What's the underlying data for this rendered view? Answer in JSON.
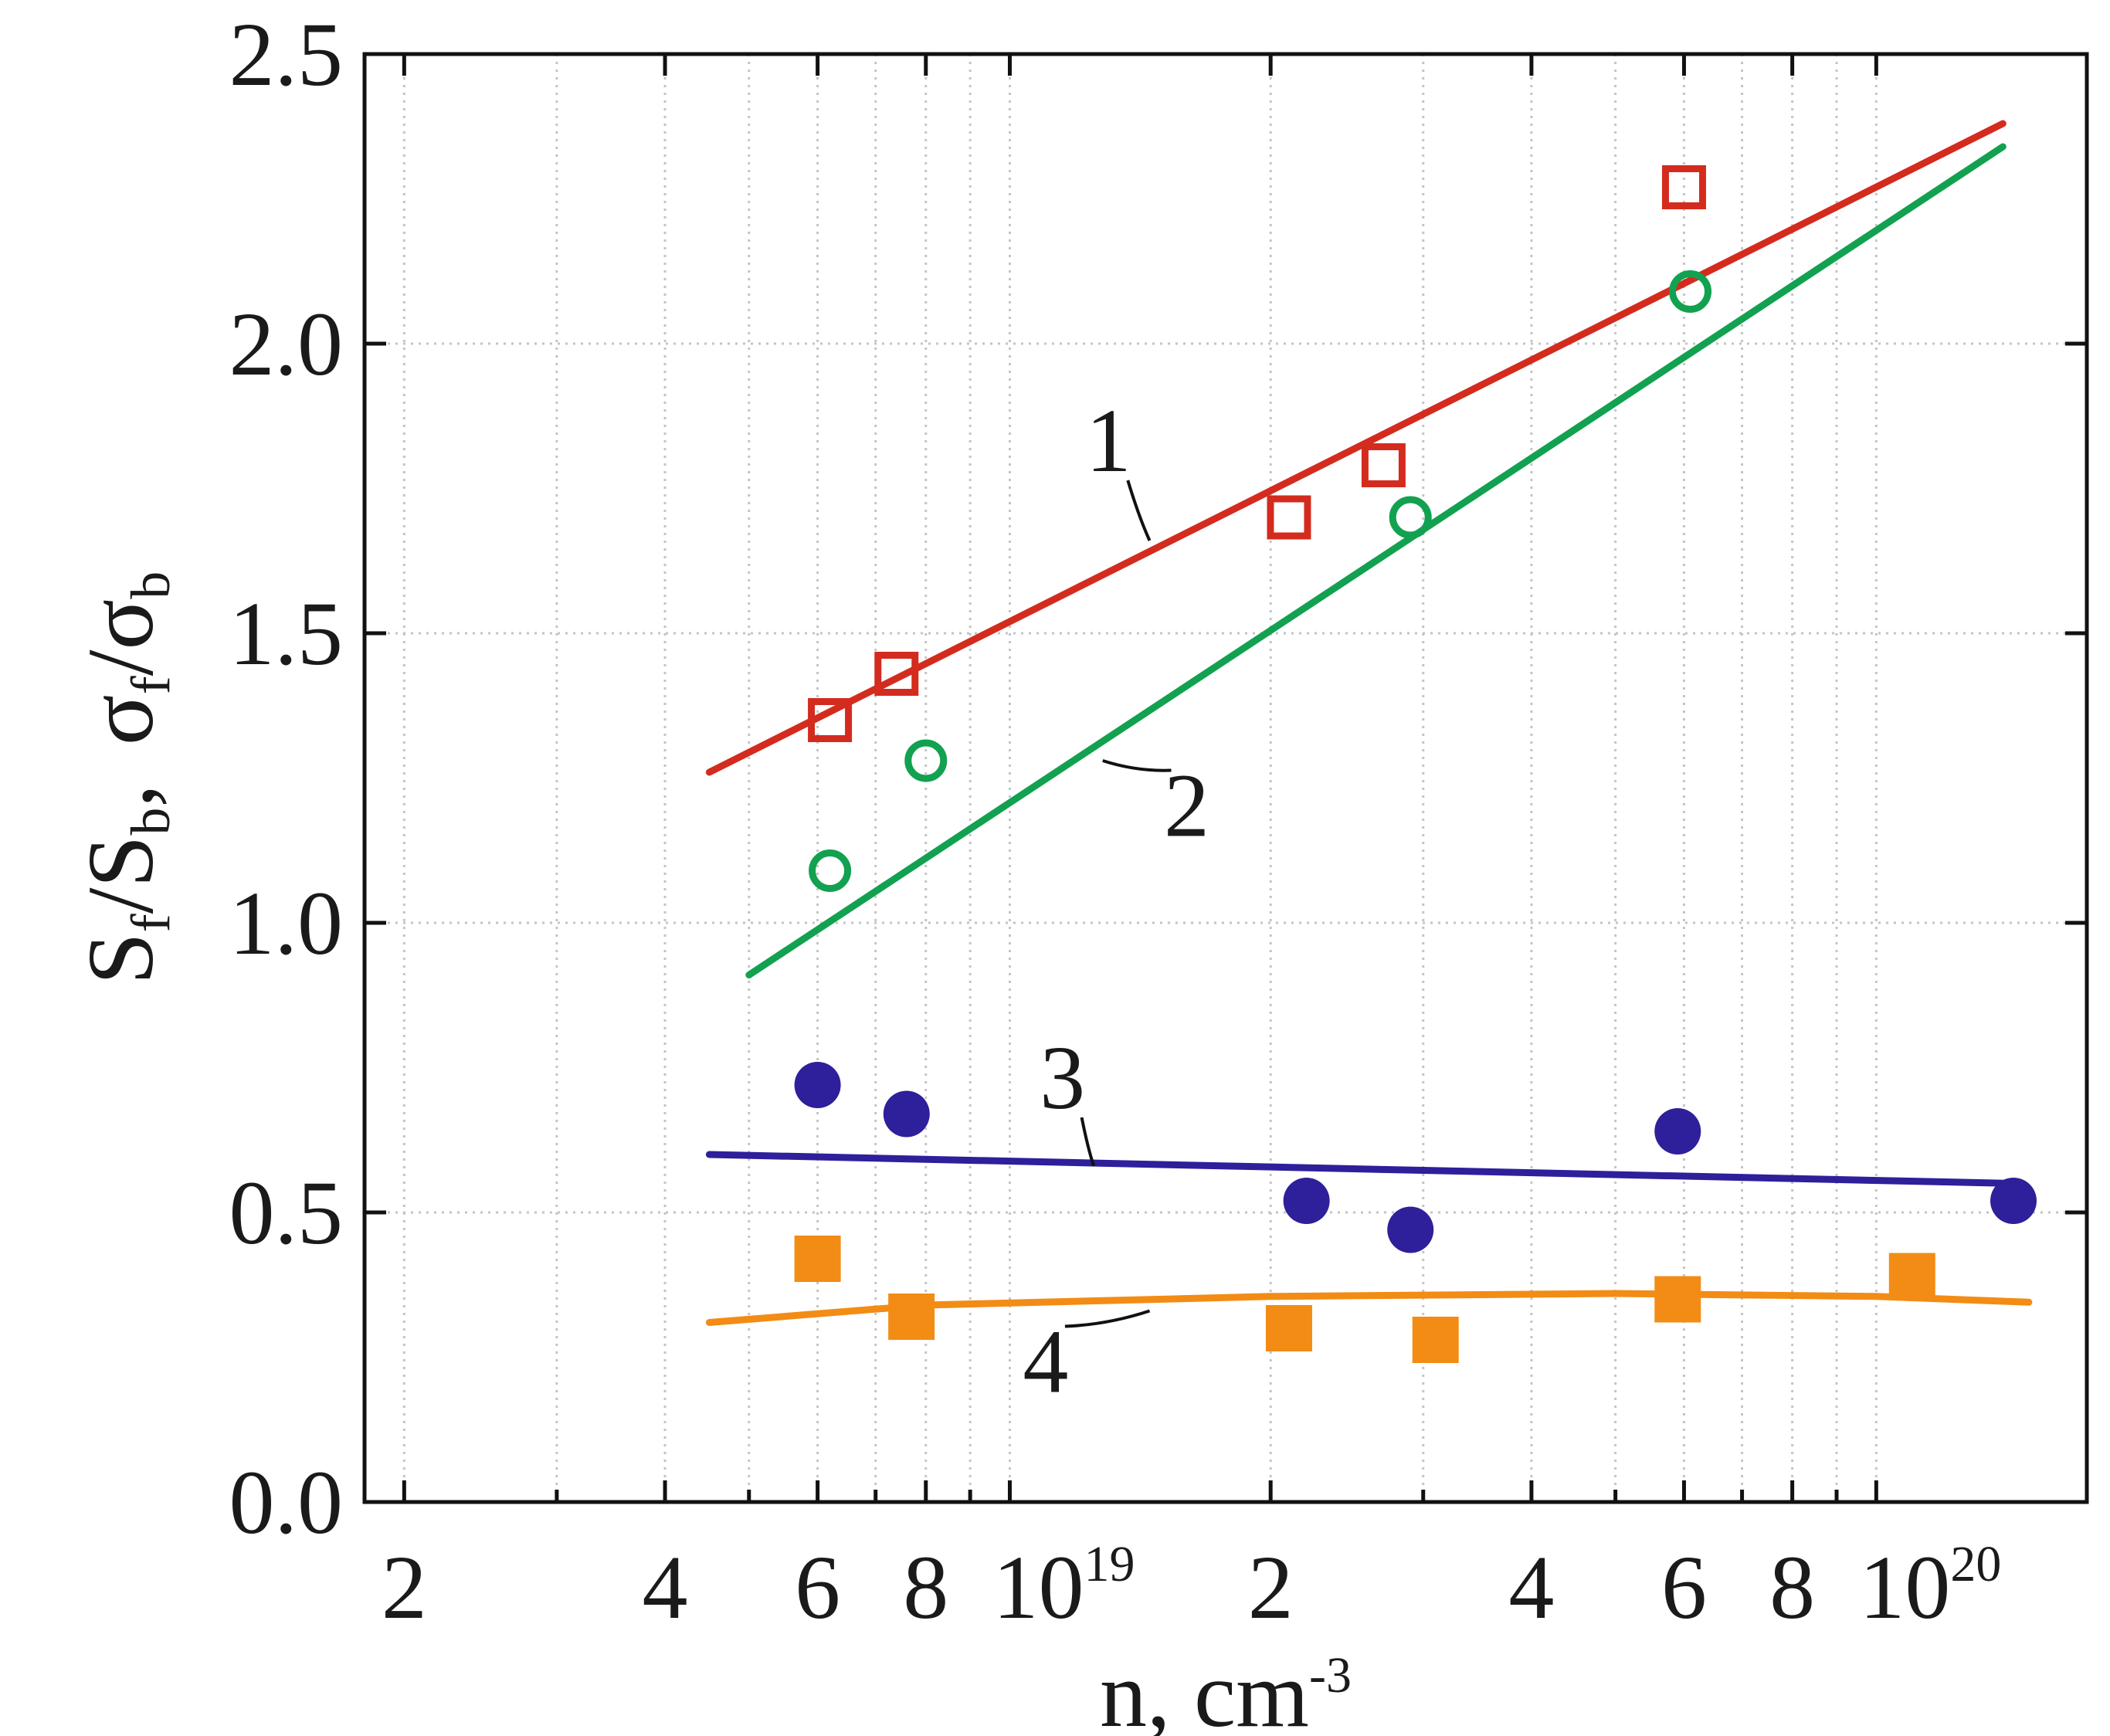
{
  "chart_data": {
    "type": "scatter",
    "xscale": "log",
    "xlim": [
      1.8e+18,
      1.75e+20
    ],
    "ylim": [
      0.0,
      2.5
    ],
    "xlabel": {
      "base": "n, cm",
      "sup": "-3"
    },
    "ylabel": {
      "part1": "S",
      "part1_sub": "f",
      "slash1": "/S",
      "part1b_sub": "b",
      "comma": ",",
      "part2": "σ",
      "part2_sub": "f",
      "slash2": "/σ",
      "part2b_sub": "b"
    },
    "y_ticks": [
      {
        "value": 0.0,
        "label": "0.0"
      },
      {
        "value": 0.5,
        "label": "0.5"
      },
      {
        "value": 1.0,
        "label": "1.0"
      },
      {
        "value": 1.5,
        "label": "1.5"
      },
      {
        "value": 2.0,
        "label": "2.0"
      },
      {
        "value": 2.5,
        "label": "2.5"
      }
    ],
    "x_ticks": [
      {
        "value": 2e+18,
        "label": "2"
      },
      {
        "value": 4e+18,
        "label": "4"
      },
      {
        "value": 6e+18,
        "label": "6"
      },
      {
        "value": 8e+18,
        "label": "8"
      },
      {
        "value": 1e+19,
        "label": "10",
        "sup": "19"
      },
      {
        "value": 2e+19,
        "label": "2"
      },
      {
        "value": 4e+19,
        "label": "4"
      },
      {
        "value": 6e+19,
        "label": "6"
      },
      {
        "value": 8e+19,
        "label": "8"
      },
      {
        "value": 1e+20,
        "label": "10",
        "sup": "20"
      }
    ],
    "minor_x_grid": [
      3e+18,
      5e+18,
      7e+18,
      9e+18,
      3e+19,
      5e+19,
      7e+19,
      9e+19
    ],
    "series": [
      {
        "name": "1",
        "marker": "open-square",
        "color": "#d42b1f",
        "points": [
          [
            6.2e+18,
            1.35
          ],
          [
            7.4e+18,
            1.43
          ],
          [
            2.1e+19,
            1.7
          ],
          [
            2.7e+19,
            1.79
          ],
          [
            6e+19,
            2.27
          ]
        ],
        "fit": [
          [
            4.5e+18,
            1.26
          ],
          [
            1.4e+20,
            2.38
          ]
        ],
        "label_at": [
          1.3e+19,
          1.78
        ],
        "leader_to": [
          1.45e+19,
          1.66
        ]
      },
      {
        "name": "2",
        "marker": "open-circle",
        "color": "#12a150",
        "points": [
          [
            6.2e+18,
            1.09
          ],
          [
            8e+18,
            1.28
          ],
          [
            2.9e+19,
            1.7
          ],
          [
            6.1e+19,
            2.09
          ]
        ],
        "fit": [
          [
            5e+18,
            0.91
          ],
          [
            1.4e+20,
            2.34
          ]
        ],
        "label_at": [
          1.6e+19,
          1.15
        ],
        "leader_to": [
          1.28e+19,
          1.28
        ]
      },
      {
        "name": "3",
        "marker": "filled-circle",
        "color": "#2e1f9a",
        "points": [
          [
            6e+18,
            0.72
          ],
          [
            7.6e+18,
            0.67
          ],
          [
            2.2e+19,
            0.52
          ],
          [
            2.9e+19,
            0.47
          ],
          [
            5.9e+19,
            0.64
          ],
          [
            1.44e+20,
            0.52
          ]
        ],
        "fit": [
          [
            4.5e+18,
            0.6
          ],
          [
            1.44e+20,
            0.55
          ]
        ],
        "label_at": [
          1.15e+19,
          0.68
        ],
        "leader_to": [
          1.25e+19,
          0.58
        ]
      },
      {
        "name": "4",
        "marker": "filled-square",
        "color": "#f28c15",
        "points": [
          [
            6e+18,
            0.42
          ],
          [
            7.7e+18,
            0.32
          ],
          [
            2.1e+19,
            0.3
          ],
          [
            3.1e+19,
            0.28
          ],
          [
            5.9e+19,
            0.35
          ],
          [
            1.1e+20,
            0.39
          ]
        ],
        "fit": [
          [
            4.5e+18,
            0.31
          ],
          [
            8e+18,
            0.34
          ],
          [
            2e+19,
            0.355
          ],
          [
            5e+19,
            0.36
          ],
          [
            1e+20,
            0.355
          ],
          [
            1.5e+20,
            0.345
          ]
        ],
        "label_at": [
          1.1e+19,
          0.19
        ],
        "leader_to": [
          1.45e+19,
          0.33
        ]
      }
    ]
  }
}
